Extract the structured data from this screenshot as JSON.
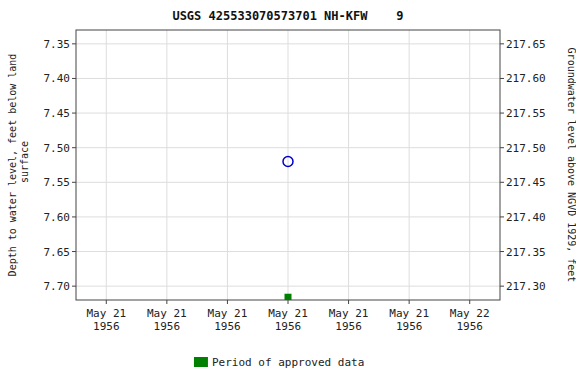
{
  "chart_data": {
    "type": "scatter",
    "title": "USGS 425533070573701 NH-KFW    9",
    "ylabel": "Depth to water level, feet below land\n surface",
    "y2label": "Groundwater level above NGVD 1929, feet",
    "categories": [
      "May 21\n1956",
      "May 21\n1956",
      "May 21\n1956",
      "May 21\n1956",
      "May 21\n1956",
      "May 21\n1956",
      "May 22\n1956"
    ],
    "series": [
      {
        "color": "#0000cc",
        "marker": "circle",
        "values": [
          null,
          null,
          null,
          7.52,
          null,
          null,
          null
        ]
      },
      {
        "name": "Period of approved data",
        "color": "#008000",
        "marker": "square",
        "values": [
          null,
          null,
          null,
          7.716,
          null,
          null,
          null
        ]
      }
    ],
    "ylim": [
      7.72,
      7.33
    ],
    "yticks": [
      7.35,
      {
        "value": 7.4,
        "label": "7.40"
      },
      7.45,
      {
        "value": 7.5,
        "label": "7.50"
      },
      7.55,
      {
        "value": 7.6,
        "label": "7.60"
      },
      7.65,
      {
        "value": 7.7,
        "label": "7.70"
      }
    ],
    "y2lim": [
      217.28,
      217.67
    ],
    "y2ticks": [
      217.65,
      {
        "value": 217.6,
        "label": "217.60"
      },
      217.55,
      {
        "value": 217.5,
        "label": "217.50"
      },
      217.45,
      {
        "value": 217.4,
        "label": "217.40"
      },
      217.35,
      {
        "value": 217.3,
        "label": "217.30"
      }
    ],
    "grid": true,
    "legend": "bottom"
  }
}
